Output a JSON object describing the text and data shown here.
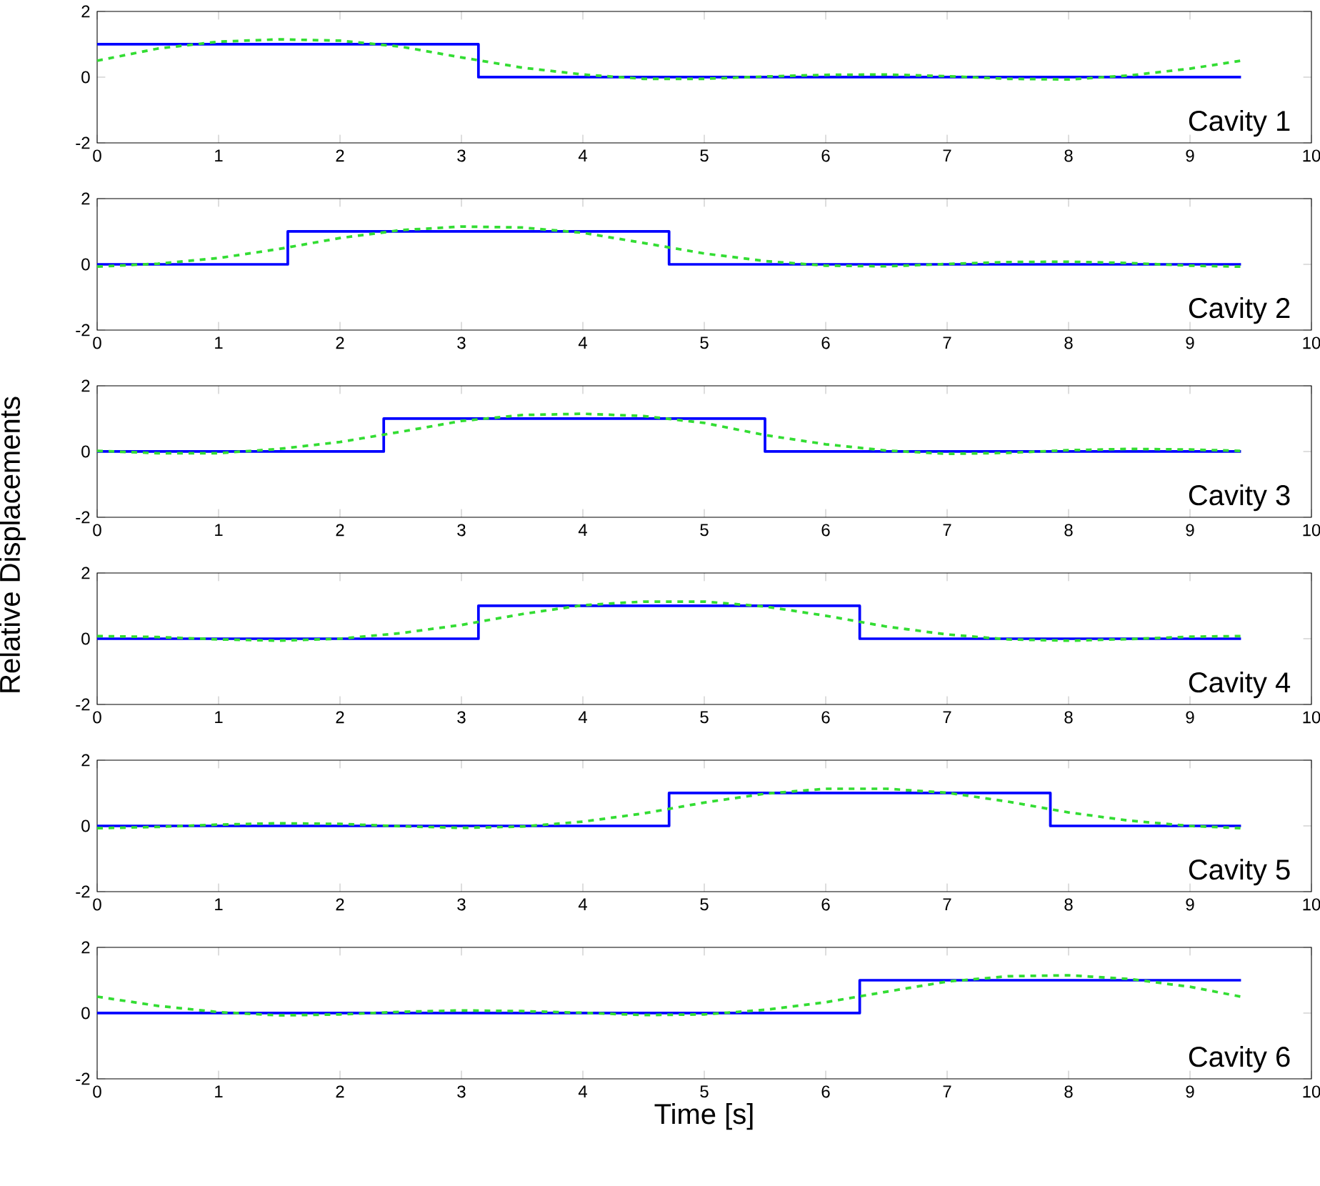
{
  "chart_data": [
    {
      "type": "line",
      "annotations": [
        "Cavity 1"
      ],
      "xlim": [
        0,
        10
      ],
      "ylim": [
        -2,
        2
      ],
      "xticks": [
        0,
        1,
        2,
        3,
        4,
        5,
        6,
        7,
        8,
        9,
        10
      ],
      "yticks": [
        -2,
        0,
        2
      ],
      "series": [
        {
          "type": "step",
          "color": "#0000ff",
          "line_style": "solid",
          "x": [
            0,
            3.14,
            9.42
          ],
          "values": [
            1,
            0,
            0
          ]
        },
        {
          "type": "line",
          "color": "#33dd33",
          "line_style": "dashed",
          "x": [
            0,
            0.5,
            1,
            1.5,
            2,
            2.5,
            3,
            3.5,
            4,
            4.5,
            5,
            5.5,
            6,
            6.5,
            7,
            7.5,
            8,
            8.5,
            9,
            9.42
          ],
          "values": [
            0.5,
            0.87,
            1.08,
            1.15,
            1.11,
            0.93,
            0.6,
            0.29,
            0.08,
            -0.05,
            -0.05,
            0.02,
            0.07,
            0.08,
            0.03,
            -0.05,
            -0.07,
            0.05,
            0.26,
            0.5
          ]
        }
      ]
    },
    {
      "type": "line",
      "annotations": [
        "Cavity 2"
      ],
      "xlim": [
        0,
        10
      ],
      "ylim": [
        -2,
        2
      ],
      "xticks": [
        0,
        1,
        2,
        3,
        4,
        5,
        6,
        7,
        8,
        9,
        10
      ],
      "yticks": [
        -2,
        0,
        2
      ],
      "series": [
        {
          "type": "step",
          "color": "#0000ff",
          "line_style": "solid",
          "x": [
            0,
            1.57,
            4.71,
            9.42
          ],
          "values": [
            0,
            1,
            0,
            0
          ]
        },
        {
          "type": "line",
          "color": "#33dd33",
          "line_style": "dashed",
          "x": [
            0,
            0.5,
            1,
            1.5,
            2,
            2.5,
            3,
            3.5,
            4,
            4.5,
            5,
            5.5,
            6,
            6.5,
            7,
            7.5,
            8,
            8.5,
            9,
            9.42
          ],
          "values": [
            -0.07,
            0.02,
            0.19,
            0.47,
            0.8,
            1.04,
            1.15,
            1.12,
            0.96,
            0.65,
            0.33,
            0.1,
            -0.04,
            -0.06,
            0.01,
            0.07,
            0.08,
            0.04,
            -0.04,
            -0.07
          ]
        }
      ]
    },
    {
      "type": "line",
      "annotations": [
        "Cavity 3"
      ],
      "xlim": [
        0,
        10
      ],
      "ylim": [
        -2,
        2
      ],
      "xticks": [
        0,
        1,
        2,
        3,
        4,
        5,
        6,
        7,
        8,
        9,
        10
      ],
      "yticks": [
        -2,
        0,
        2
      ],
      "series": [
        {
          "type": "step",
          "color": "#0000ff",
          "line_style": "solid",
          "x": [
            0,
            2.36,
            5.5,
            9.42
          ],
          "values": [
            0,
            1,
            0,
            0
          ]
        },
        {
          "type": "line",
          "color": "#33dd33",
          "line_style": "dashed",
          "x": [
            0,
            0.5,
            1,
            1.5,
            2,
            2.5,
            3,
            3.5,
            4,
            4.5,
            5,
            5.5,
            6,
            6.5,
            7,
            7.5,
            8,
            8.5,
            9,
            9.42
          ],
          "values": [
            0.02,
            -0.05,
            -0.05,
            0.08,
            0.29,
            0.6,
            0.93,
            1.11,
            1.15,
            1.08,
            0.87,
            0.5,
            0.22,
            0.03,
            -0.07,
            -0.04,
            0.04,
            0.08,
            0.06,
            0.02
          ]
        }
      ]
    },
    {
      "type": "line",
      "ylabel": "Relative Displacements",
      "annotations": [
        "Cavity 4"
      ],
      "xlim": [
        0,
        10
      ],
      "ylim": [
        -2,
        2
      ],
      "xticks": [
        0,
        1,
        2,
        3,
        4,
        5,
        6,
        7,
        8,
        9,
        10
      ],
      "yticks": [
        -2,
        0,
        2
      ],
      "series": [
        {
          "type": "step",
          "color": "#0000ff",
          "line_style": "solid",
          "x": [
            0,
            3.14,
            6.28,
            9.42
          ],
          "values": [
            0,
            1,
            0,
            0
          ]
        },
        {
          "type": "line",
          "color": "#33dd33",
          "line_style": "dashed",
          "x": [
            0,
            0.5,
            1,
            1.5,
            2,
            2.5,
            3,
            3.5,
            4,
            4.5,
            5,
            5.5,
            6,
            6.5,
            7,
            7.5,
            8,
            8.5,
            9,
            9.42
          ],
          "values": [
            0.08,
            0.05,
            -0.02,
            -0.06,
            0.0,
            0.17,
            0.42,
            0.75,
            1.02,
            1.13,
            1.13,
            0.98,
            0.7,
            0.37,
            0.13,
            -0.02,
            -0.06,
            -0.01,
            0.06,
            0.08
          ]
        }
      ]
    },
    {
      "type": "line",
      "annotations": [
        "Cavity 5"
      ],
      "xlim": [
        0,
        10
      ],
      "ylim": [
        -2,
        2
      ],
      "xticks": [
        0,
        1,
        2,
        3,
        4,
        5,
        6,
        7,
        8,
        9,
        10
      ],
      "yticks": [
        -2,
        0,
        2
      ],
      "series": [
        {
          "type": "step",
          "color": "#0000ff",
          "line_style": "solid",
          "x": [
            0,
            4.71,
            7.85,
            9.42
          ],
          "values": [
            0,
            1,
            0,
            0
          ]
        },
        {
          "type": "line",
          "color": "#33dd33",
          "line_style": "dashed",
          "x": [
            0,
            0.5,
            1,
            1.5,
            2,
            2.5,
            3,
            3.5,
            4,
            4.5,
            5,
            5.5,
            6,
            6.5,
            7,
            7.5,
            8,
            8.5,
            9,
            9.42
          ],
          "values": [
            -0.07,
            -0.03,
            0.04,
            0.08,
            0.06,
            -0.01,
            -0.06,
            -0.02,
            0.13,
            0.38,
            0.71,
            0.98,
            1.13,
            1.13,
            1.01,
            0.74,
            0.41,
            0.16,
            0.0,
            -0.07
          ]
        }
      ]
    },
    {
      "type": "line",
      "xlabel": "Time [s]",
      "annotations": [
        "Cavity 6"
      ],
      "xlim": [
        0,
        10
      ],
      "ylim": [
        -2,
        2
      ],
      "xticks": [
        0,
        1,
        2,
        3,
        4,
        5,
        6,
        7,
        8,
        9,
        10
      ],
      "yticks": [
        -2,
        0,
        2
      ],
      "series": [
        {
          "type": "step",
          "color": "#0000ff",
          "line_style": "solid",
          "x": [
            0,
            6.28,
            9.42
          ],
          "values": [
            0,
            1,
            1
          ]
        },
        {
          "type": "line",
          "color": "#33dd33",
          "line_style": "dashed",
          "x": [
            0,
            0.5,
            1,
            1.5,
            2,
            2.5,
            3,
            3.5,
            4,
            4.5,
            5,
            5.5,
            6,
            6.5,
            7,
            7.5,
            8,
            8.5,
            9,
            9.42
          ],
          "values": [
            0.5,
            0.22,
            0.03,
            -0.07,
            -0.04,
            0.04,
            0.08,
            0.06,
            0.01,
            -0.06,
            -0.04,
            0.1,
            0.33,
            0.65,
            0.96,
            1.12,
            1.15,
            1.04,
            0.8,
            0.5
          ]
        }
      ]
    }
  ]
}
